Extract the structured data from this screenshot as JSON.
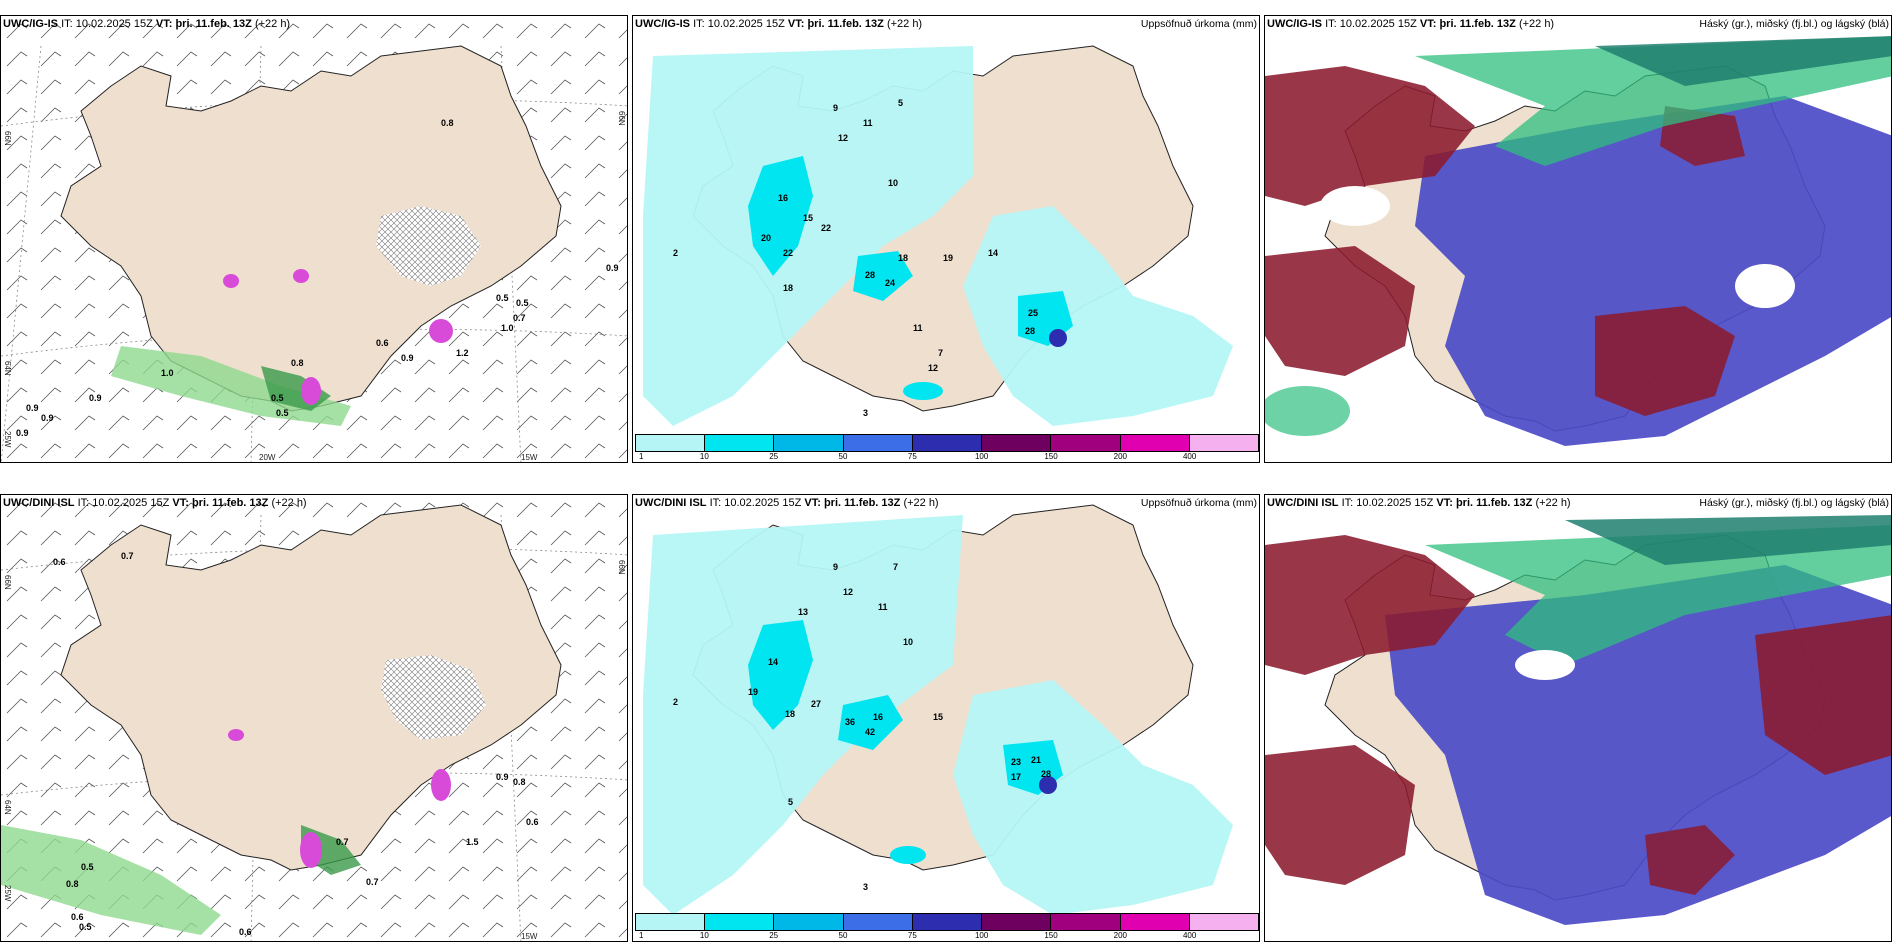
{
  "panels": {
    "top_left": {
      "model": "UWC/IG-IS",
      "it_label": "IT:",
      "it": "10.02.2025 15Z",
      "vt_label": "VT:",
      "vt": "þri. 11.feb. 13Z",
      "lead": "(+22 h)"
    },
    "top_mid": {
      "model": "UWC/IG-IS",
      "it_label": "IT:",
      "it": "10.02.2025 15Z",
      "vt_label": "VT:",
      "vt": "þri. 11.feb. 13Z",
      "lead": "(+22 h)",
      "right_title": "Uppsöfnuð úrkoma (mm)"
    },
    "top_right": {
      "model": "UWC/IG-IS",
      "it_label": "IT:",
      "it": "10.02.2025 15Z",
      "vt_label": "VT:",
      "vt": "þri. 11.feb. 13Z",
      "lead": "(+22 h)",
      "right_title": "Háský (gr.), miðský (fj.bl.) og lágský (blá)"
    },
    "bot_left": {
      "model": "UWC/DINI ISL",
      "it_label": "IT:",
      "it": "10.02.2025 15Z",
      "vt_label": "VT:",
      "vt": "þri. 11.feb. 13Z",
      "lead": "(+22 h)"
    },
    "bot_mid": {
      "model": "UWC/DINI ISL",
      "it_label": "IT:",
      "it": "10.02.2025 15Z",
      "vt_label": "VT:",
      "vt": "þri. 11.feb. 13Z",
      "lead": "(+22 h)",
      "right_title": "Uppsöfnuð úrkoma (mm)"
    },
    "bot_right": {
      "model": "UWC/DINI ISL",
      "it_label": "IT:",
      "it": "10.02.2025 15Z",
      "vt_label": "VT:",
      "vt": "þri. 11.feb. 13Z",
      "lead": "(+22 h)",
      "right_title": "Háský (gr.), miðský (fj.bl.) og lágský (blá)"
    }
  },
  "axes": {
    "lat_66": "66N",
    "lat_64": "64N",
    "lon_20": "20W",
    "lon_15": "15W",
    "lon_25": "25W"
  },
  "precip_legend": {
    "ticks": [
      "1",
      "10",
      "25",
      "50",
      "75",
      "100",
      "150",
      "200",
      "400"
    ],
    "colors": [
      "#b5f5f5",
      "#00e5f0",
      "#00b8e8",
      "#3c6ee8",
      "#2d2db0",
      "#6e0060",
      "#a0007e",
      "#e000b0",
      "#f5b0f0"
    ]
  },
  "top_left_values": [
    "0.8",
    "0.9",
    "0.5",
    "0.5",
    "0.7",
    "1.0",
    "0.9",
    "1.2",
    "0.6",
    "0.8",
    "1.0",
    "0.9",
    "0.9",
    "0.9",
    "0.9",
    "0.5",
    "0.5"
  ],
  "top_mid_values": [
    "16",
    "15",
    "22",
    "20",
    "22",
    "18",
    "28",
    "24",
    "25",
    "28",
    "18",
    "19",
    "14",
    "12",
    "11",
    "10",
    "11",
    "12",
    "7",
    "9",
    "5",
    "3",
    "2"
  ],
  "bot_left_values": [
    "0.6",
    "0.7",
    "0.9",
    "0.8",
    "0.6",
    "1.5",
    "0.7",
    "0.7",
    "0.5",
    "0.8",
    "0.6",
    "0.5",
    "0.6"
  ],
  "bot_mid_values": [
    "16",
    "15",
    "14",
    "19",
    "27",
    "18",
    "36",
    "42",
    "23",
    "21",
    "17",
    "28",
    "13",
    "12",
    "11",
    "10",
    "9",
    "7",
    "5",
    "3",
    "2"
  ],
  "colors": {
    "land": "#efdfcf",
    "precip_light": "#b5f5f5",
    "precip_mid": "#00e5f0",
    "high_cloud": "#2fbf7f",
    "mid_cloud": "#8b1a2e",
    "low_cloud": "#4b4bc8"
  }
}
